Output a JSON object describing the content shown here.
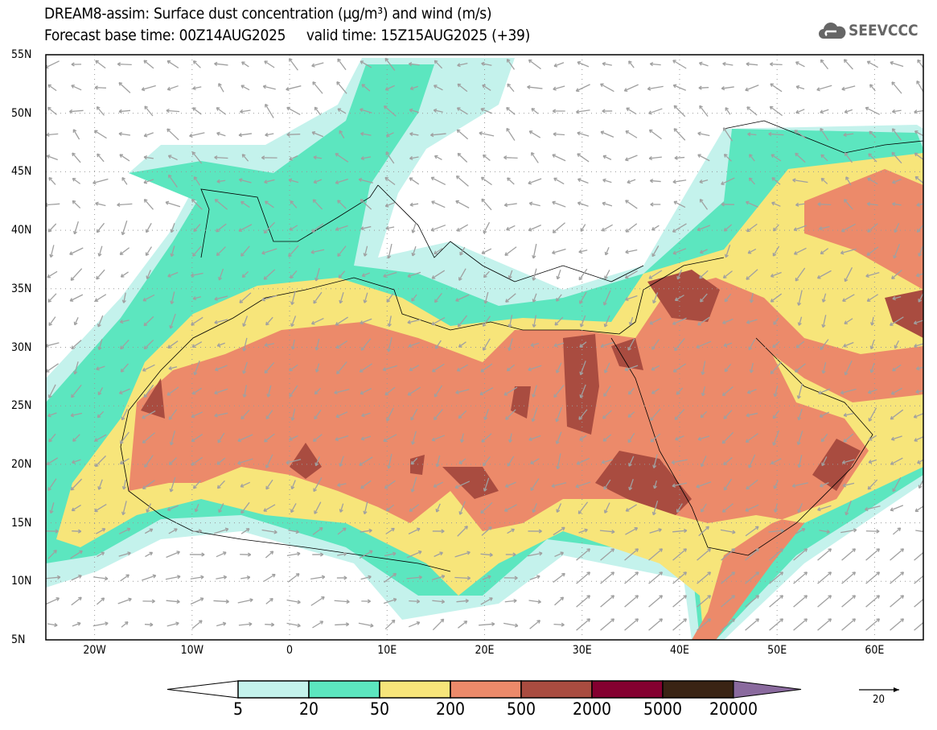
{
  "title": {
    "line1": "DREAM8-assim: Surface dust concentration (µg/m³) and wind (m/s)",
    "line2": "Forecast base time: 00Z14AUG2025     valid time: 15Z15AUG2025 (+39)"
  },
  "logo": {
    "text": "SEEVCCC",
    "icon": "cloud-icon"
  },
  "axes": {
    "lat_labels": [
      "55N",
      "50N",
      "45N",
      "40N",
      "35N",
      "30N",
      "25N",
      "20N",
      "15N",
      "10N",
      "5N"
    ],
    "lon_labels": [
      "20W",
      "10W",
      "0",
      "10E",
      "20E",
      "30E",
      "40E",
      "50E",
      "60E"
    ]
  },
  "colorbar": {
    "labels": [
      "5",
      "20",
      "50",
      "200",
      "500",
      "2000",
      "5000",
      "20000"
    ],
    "colors": [
      "#ffffff",
      "#c4f2ec",
      "#5ce6bf",
      "#f7e57a",
      "#ec8a6a",
      "#a94c40",
      "#840030",
      "#3a2414",
      "#8a6a9e"
    ]
  },
  "wind_reference": {
    "value": "20",
    "units": "m/s"
  }
}
